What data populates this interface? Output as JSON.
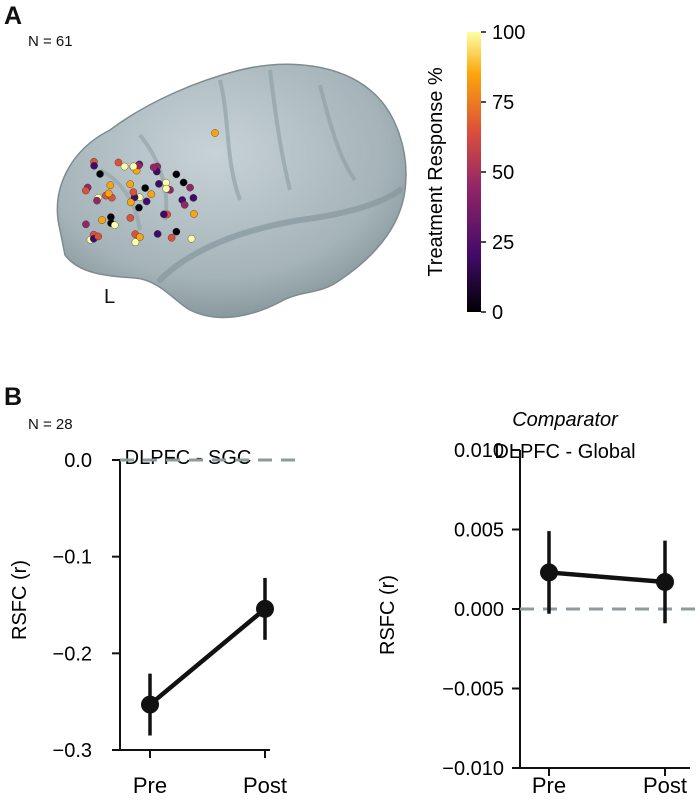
{
  "panel_a": {
    "letter": "A",
    "n_label": "N = 61",
    "hemisphere_label": "L",
    "colorbar": {
      "label": "Treatment Response %",
      "ticks": [
        "100",
        "75",
        "50",
        "25",
        "0"
      ],
      "colors": [
        "#000004",
        "#420a68",
        "#932667",
        "#dd513a",
        "#fca50a",
        "#fcffa4"
      ]
    }
  },
  "panel_b": {
    "letter": "B",
    "n_label": "N = 28"
  },
  "chart_data": [
    {
      "type": "line",
      "title": "DLPFC - SGC",
      "subtitle": "",
      "ylabel": "RSFC (r)",
      "xlabel": "",
      "categories": [
        "Pre",
        "Post"
      ],
      "series": [
        {
          "values": [
            -0.253,
            -0.154
          ],
          "err_low": [
            -0.285,
            -0.186
          ],
          "err_high": [
            -0.221,
            -0.122
          ]
        }
      ],
      "ylim": [
        -0.3,
        0.0
      ],
      "yticks": [
        "0.0",
        "-0.1",
        "-0.2",
        "-0.3"
      ],
      "reference_line": 0.0,
      "grid": false
    },
    {
      "type": "line",
      "title": "DLPFC - Global",
      "subtitle": "Comparator",
      "ylabel": "RSFC (r)",
      "xlabel": "",
      "categories": [
        "Pre",
        "Post"
      ],
      "series": [
        {
          "values": [
            0.0023,
            0.0017
          ],
          "err_low": [
            -0.0003,
            -0.0009
          ],
          "err_high": [
            0.0049,
            0.0043
          ]
        }
      ],
      "ylim": [
        -0.01,
        0.01
      ],
      "yticks": [
        "0.010",
        "0.005",
        "0.000",
        "-0.005",
        "-0.010"
      ],
      "reference_line": 0.0,
      "grid": false
    }
  ]
}
